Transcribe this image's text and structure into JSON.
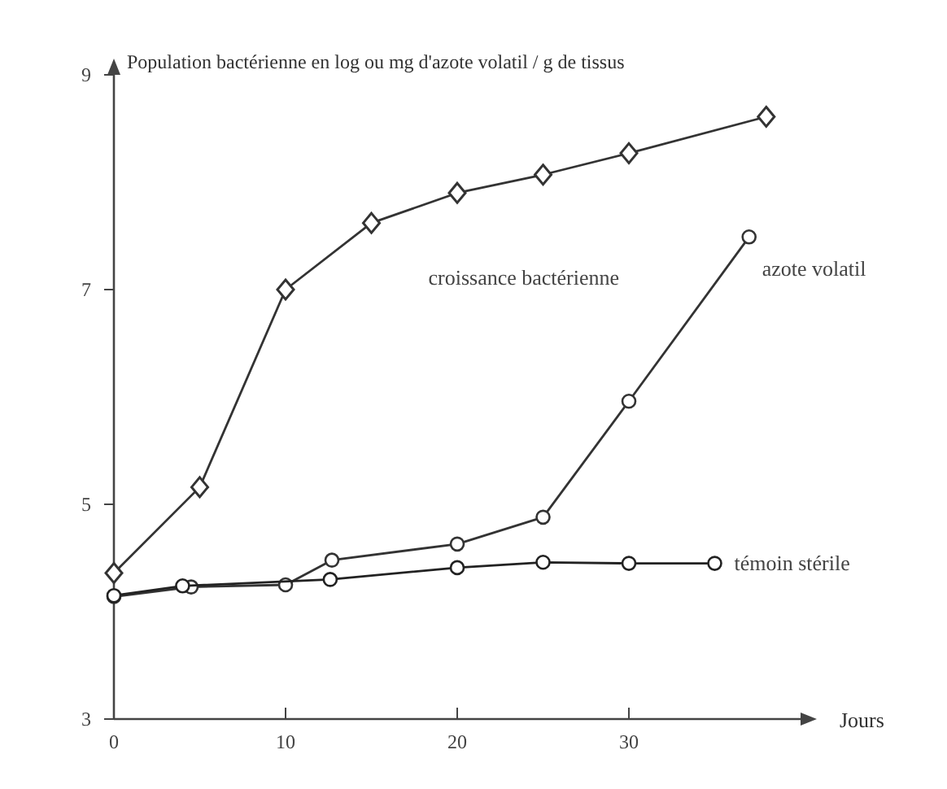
{
  "chart_data": {
    "type": "line",
    "ylabel": "Population bactérienne en log ou mg d'azote volatil / g de tissus",
    "xlabel": "Jours",
    "xlim": [
      0,
      40
    ],
    "xticks": [
      0,
      10,
      20,
      30
    ],
    "ylim": [
      3,
      9
    ],
    "yticks": [
      3,
      5,
      7,
      9
    ],
    "grid": false,
    "line_style": "solid",
    "series": [
      {
        "name": "croissance bactérienne",
        "color": "#333333",
        "marker": "diamond",
        "x": [
          0,
          5,
          10,
          15,
          20,
          25,
          30,
          38
        ],
        "values": [
          4.36,
          5.16,
          7,
          7.62,
          7.9,
          8.07,
          8.27,
          8.61
        ]
      },
      {
        "name": "azote volatil",
        "color": "#333333",
        "marker": "circle",
        "x": [
          0,
          4.5,
          10,
          12.7,
          20,
          25,
          30,
          37
        ],
        "values": [
          4.14,
          4.23,
          4.25,
          4.48,
          4.63,
          4.88,
          5.96,
          7.49
        ]
      },
      {
        "name": "témoin stérile",
        "color": "#222222",
        "marker": "circle",
        "x": [
          0,
          4,
          12.6,
          20,
          25,
          30,
          35
        ],
        "values": [
          4.15,
          4.24,
          4.3,
          4.41,
          4.46,
          4.45,
          4.45
        ]
      }
    ]
  }
}
